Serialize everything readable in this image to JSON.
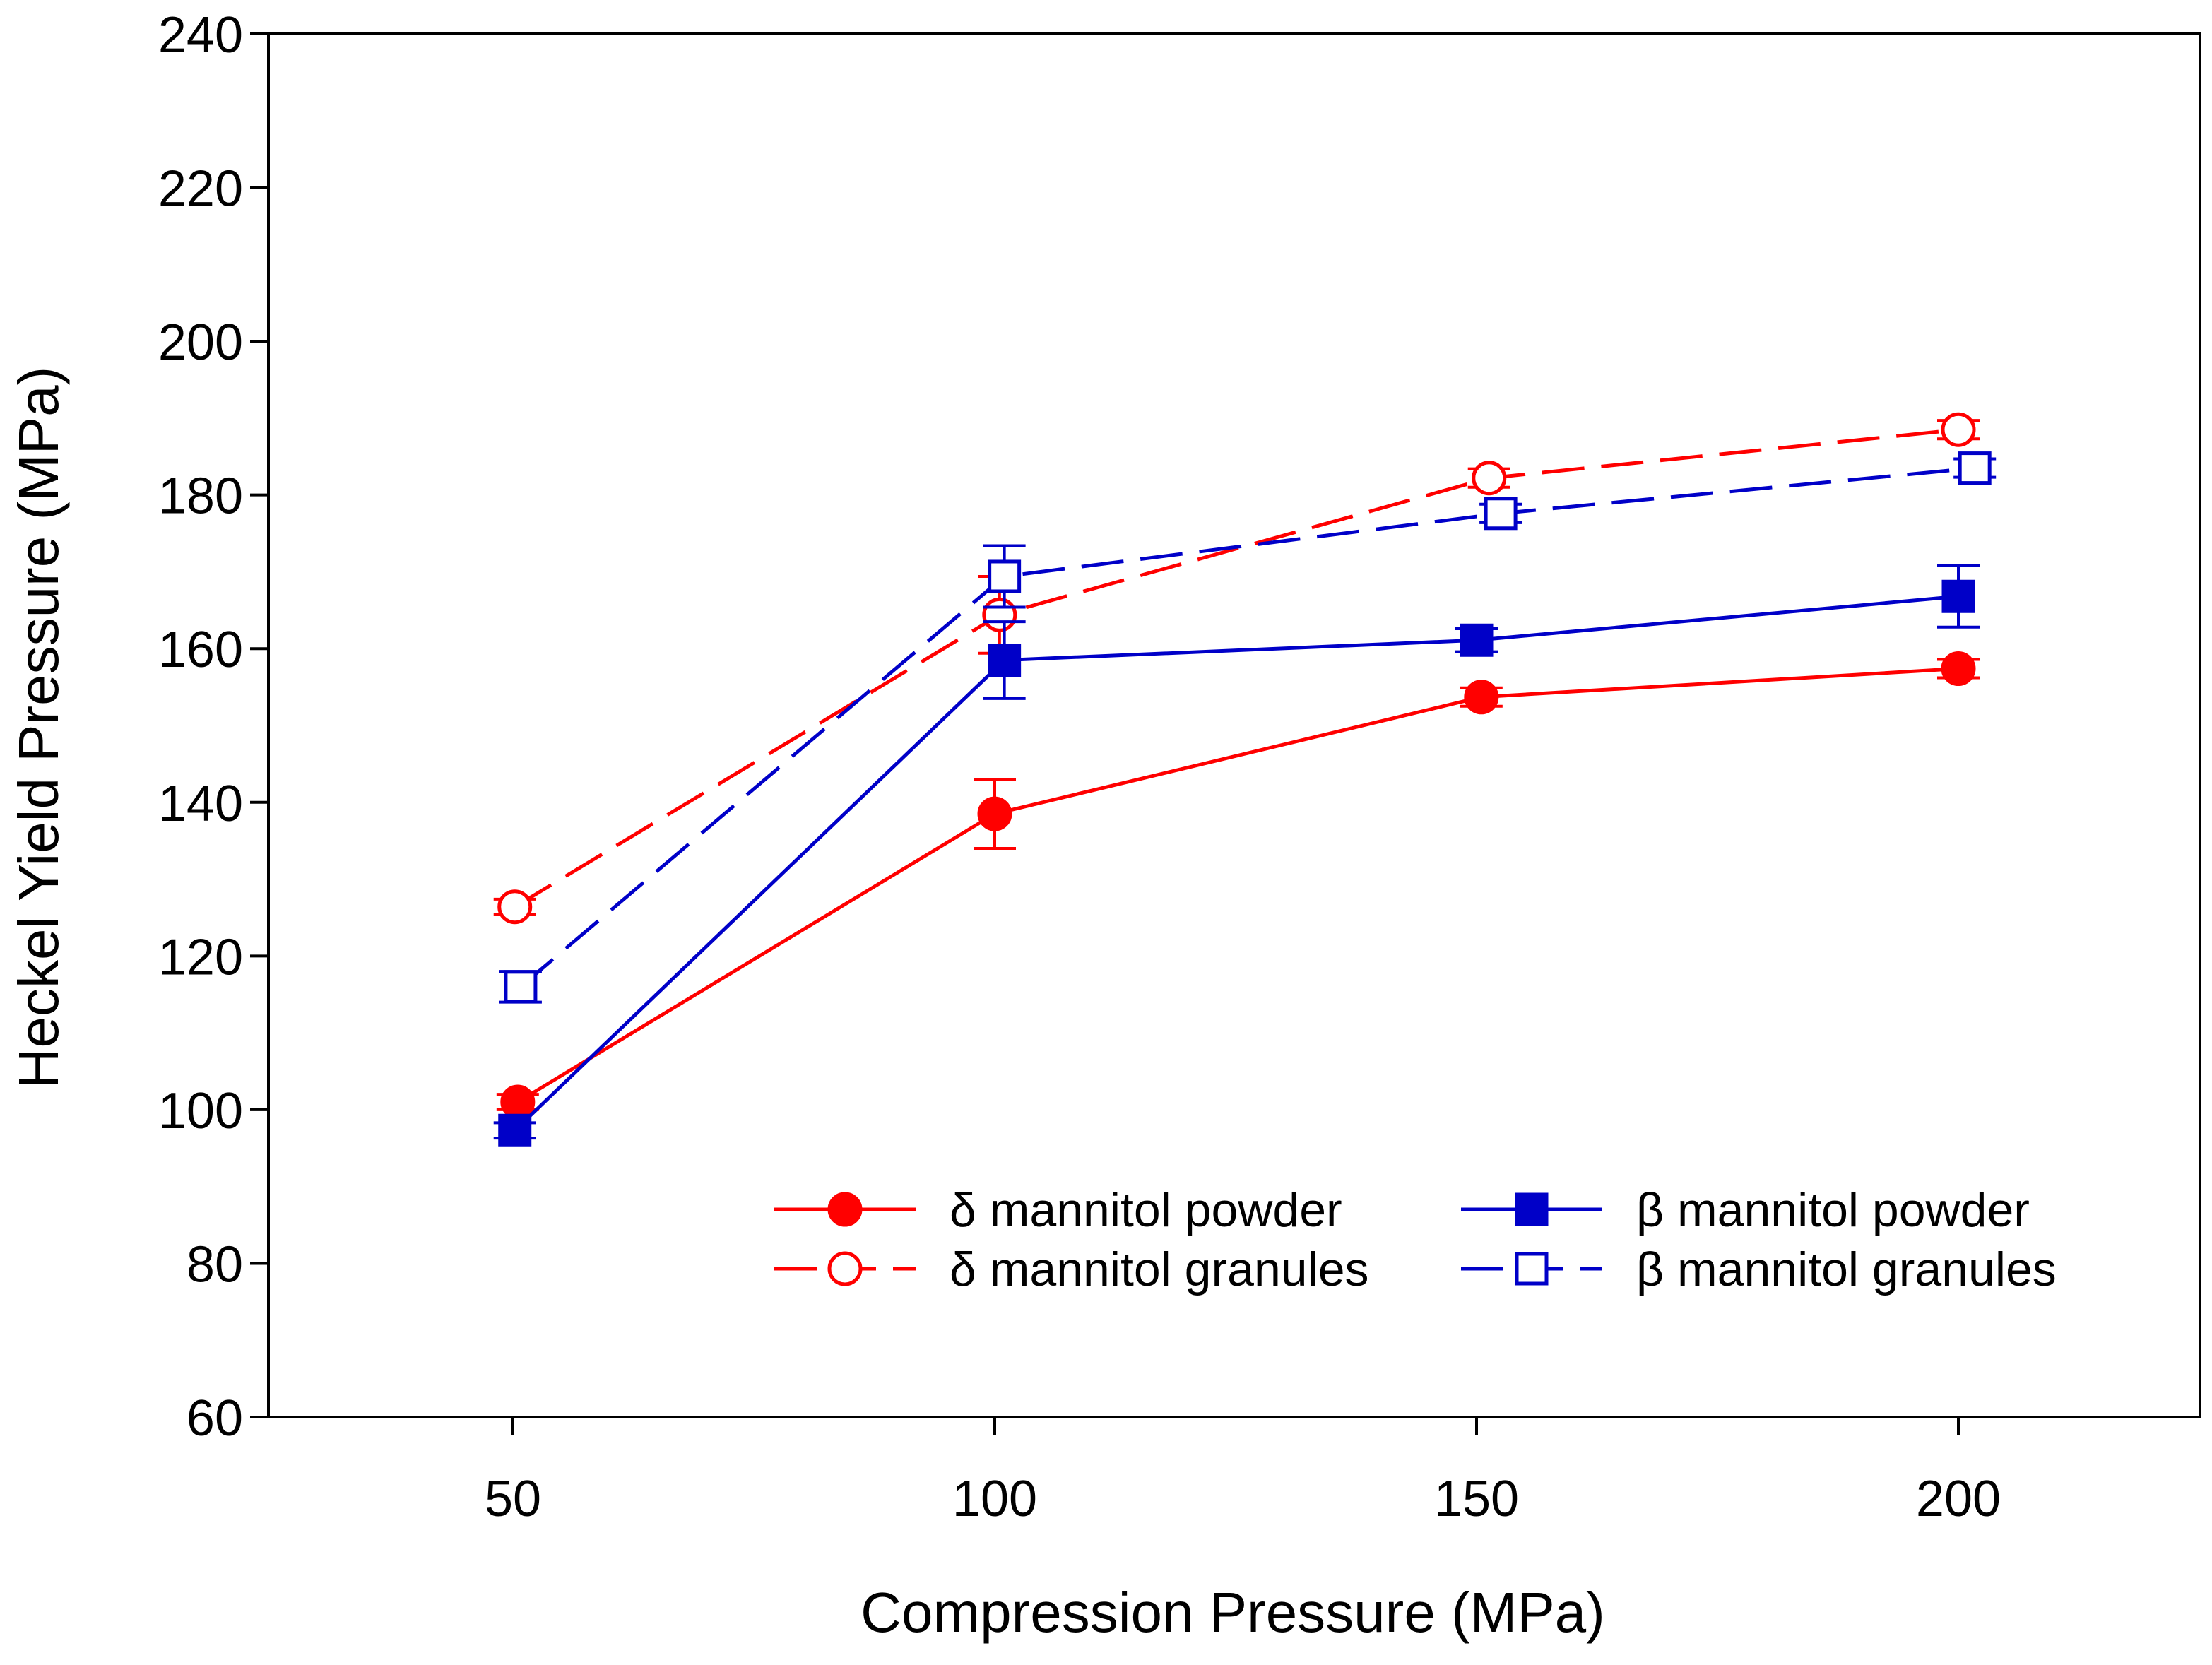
{
  "chart_data": {
    "type": "line",
    "title": "",
    "xlabel": "Compression Pressure (MPa)",
    "ylabel": "Heckel Yield Pressure (MPa)",
    "xlim": [
      25,
      225
    ],
    "ylim": [
      60,
      240
    ],
    "xticks": [
      50,
      100,
      150,
      200
    ],
    "yticks": [
      60,
      80,
      100,
      120,
      140,
      160,
      180,
      200,
      220,
      240
    ],
    "grid": false,
    "legend_position": "bottom-right",
    "series": [
      {
        "name": "δ mannitol powder",
        "color": "#ff0000",
        "dash": false,
        "marker": "circle",
        "filled": true,
        "x": [
          50.5,
          100,
          150.5,
          200
        ],
        "y": [
          101,
          138.5,
          153.7,
          157.4
        ],
        "yerr": [
          1,
          4.5,
          1.2,
          1.2
        ]
      },
      {
        "name": "δ mannitol granules",
        "color": "#ff0000",
        "dash": true,
        "marker": "circle",
        "filled": false,
        "x": [
          50.2,
          100.5,
          151.3,
          200
        ],
        "y": [
          126.4,
          164.4,
          182.2,
          188.5
        ],
        "yerr": [
          1,
          5,
          1.2,
          1.2
        ]
      },
      {
        "name": "β mannitol powder",
        "color": "#0000c8",
        "dash": false,
        "marker": "square",
        "filled": true,
        "x": [
          50.2,
          101,
          150,
          200
        ],
        "y": [
          97.3,
          158.5,
          161.1,
          166.8
        ],
        "yerr": [
          1,
          5,
          1.5,
          4
        ]
      },
      {
        "name": "β mannitol granules",
        "color": "#0000c8",
        "dash": true,
        "marker": "square",
        "filled": false,
        "x": [
          50.8,
          101,
          152.5,
          201.7
        ],
        "y": [
          116,
          169.4,
          177.6,
          183.5
        ],
        "yerr": [
          2,
          4,
          1.2,
          1.2
        ]
      }
    ]
  }
}
